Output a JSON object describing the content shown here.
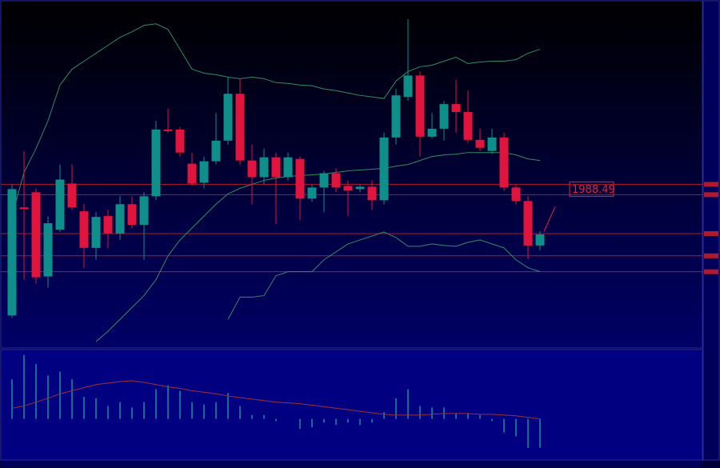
{
  "chart_data": [
    {
      "type": "candlestick",
      "up_color": "#0e8f8a",
      "down_color": "#e0143c",
      "open": [
        1909,
        1977,
        1986.5,
        1933.5,
        1963,
        1992,
        1974.5,
        1951.5,
        1971.5,
        1960.5,
        1979,
        1966,
        1984,
        2026,
        2026,
        2004.5,
        1992.5,
        2006,
        2019,
        2048.5,
        2006.5,
        1996,
        2008.5,
        1996,
        2007.5,
        1982.5,
        1989.5,
        1998.5,
        1990.5,
        1988.5,
        1990,
        1981.5,
        2021,
        2046.5,
        2060,
        2021.5,
        2026.5,
        2042,
        2037,
        2019.5,
        2012.5,
        2021,
        1989.5,
        1981,
        1953
      ],
      "high": [
        1991.5,
        2012.5,
        1989,
        1971.5,
        2004,
        2004,
        1979,
        1974,
        1975.5,
        1984,
        1984,
        1986.5,
        2031.5,
        2039,
        2027.5,
        2011.5,
        2009,
        2036.5,
        2059,
        2058,
        2016.5,
        2014,
        2011.5,
        2011.5,
        2009,
        1991.5,
        2000,
        2001.5,
        1994,
        1991.5,
        1994,
        2024,
        2051.5,
        2095.5,
        2062.5,
        2036.5,
        2044,
        2057.5,
        2050.5,
        2026.5,
        2026.5,
        2024,
        1991.5,
        1984,
        1962
      ],
      "low": [
        1907.5,
        1931.5,
        1929,
        1926.5,
        1961.5,
        1975.5,
        1939,
        1944,
        1951.5,
        1956.5,
        1964,
        1944,
        1981.5,
        2024,
        2009,
        1990.5,
        1989,
        2004,
        2016.5,
        2004,
        1979,
        1991.5,
        1966.5,
        1994,
        1969,
        1980.5,
        1974,
        1986.5,
        1971.5,
        1986.5,
        1975.5,
        1979,
        2016.5,
        2044,
        2009,
        2020.5,
        2019,
        2024,
        2017.5,
        2012.5,
        2010.5,
        1987.5,
        1979,
        1944.5,
        1950
      ],
      "close": [
        1988.5,
        1976,
        1933,
        1967,
        1994.5,
        1977,
        1951.5,
        1971,
        1960.5,
        1979,
        1966,
        1984,
        2026,
        2025,
        2011.5,
        1992,
        2006,
        2019,
        2048.5,
        2006.5,
        1996,
        2008.5,
        1996,
        2008.5,
        1982.5,
        1989.5,
        1998.5,
        1989.5,
        1987.5,
        1990,
        1981.5,
        2021,
        2047.5,
        2060,
        2021.5,
        2026.5,
        2042,
        2037,
        2019.5,
        2014.5,
        2021,
        1989.5,
        1981,
        1953,
        1960
      ],
      "series": [
        {
          "color": "#2f8f62",
          "values": [
            1971.5,
            1999,
            2014,
            2031.5,
            2054,
            2064,
            2069,
            2074,
            2079,
            2084,
            2087.5,
            2091.5,
            2092.5,
            2089,
            2076.5,
            2064,
            2061.5,
            2060.5,
            2059,
            2058,
            2059,
            2058,
            2055.5,
            2055,
            2054,
            2053.5,
            2051.5,
            2050.5,
            2049,
            2047.5,
            2046.5,
            2045.5,
            2056.5,
            2062.5,
            2065.5,
            2066.5,
            2069,
            2071.5,
            2067.5,
            2068.5,
            2069,
            2069,
            2070,
            2074,
            2076.5
          ]
        },
        {
          "color": "#2f8f62",
          "values": [
            null,
            null,
            null,
            null,
            null,
            null,
            null,
            1892.5,
            1899,
            1906.5,
            1914,
            1921.5,
            1931.5,
            1946.5,
            1956.5,
            1964,
            1971.5,
            1979,
            1985.5,
            1989,
            1991.5,
            1994,
            1995.5,
            1996.5,
            1997,
            1997.5,
            1998,
            1999,
            2000,
            2000.5,
            2001,
            2001.5,
            2003,
            2004,
            2006.5,
            2009,
            2010,
            2010.5,
            2011.5,
            2011.5,
            2011.5,
            2011.5,
            2010,
            2007.5,
            2006.5
          ]
        },
        {
          "color": "#2f8f62",
          "values": [
            null,
            null,
            null,
            null,
            null,
            null,
            null,
            null,
            null,
            null,
            null,
            null,
            null,
            null,
            null,
            null,
            null,
            null,
            1906.5,
            1920.5,
            1920.5,
            1921.5,
            1934,
            1936.5,
            1936.5,
            1936.5,
            1944,
            1949,
            1954,
            1956.5,
            1959,
            1961.5,
            1958,
            1952.5,
            1952.5,
            1954,
            1953,
            1952.5,
            1955,
            1956.5,
            1954,
            1951.5,
            1944,
            1939,
            1936.5
          ]
        }
      ],
      "hlines": [
        1991.5,
        1985,
        1960.5,
        1946.5,
        1936.5
      ],
      "hline_color": "#b01a2a",
      "price_label": 1988.49,
      "label_color": "#e8203a",
      "ylim": [
        1889,
        2106.5
      ]
    },
    {
      "type": "bar",
      "color": "#1a9aa0",
      "values": [
        52,
        84,
        72,
        57,
        62,
        52,
        29,
        27,
        17,
        22,
        15,
        22,
        39,
        44,
        37,
        22,
        19,
        22,
        34,
        17,
        5,
        5,
        -3,
        0,
        -13,
        -11,
        -5,
        -8,
        -5,
        -8,
        -5,
        9,
        27,
        39,
        17,
        15,
        15,
        7,
        7,
        5,
        -3,
        -18,
        -23,
        -38,
        -38
      ],
      "series": [
        {
          "color": "#a0303a",
          "values": [
            14,
            17,
            22,
            27,
            33,
            37,
            41,
            45,
            47,
            49,
            50,
            48,
            45,
            42,
            40,
            37,
            35,
            33,
            30,
            28,
            26,
            24,
            22,
            21,
            20,
            18,
            16,
            14,
            12,
            10,
            8,
            6,
            5,
            5,
            5,
            6,
            7,
            7,
            7,
            6,
            6,
            5,
            4,
            2,
            0
          ]
        }
      ],
      "ylim": [
        -53,
        90
      ]
    }
  ]
}
